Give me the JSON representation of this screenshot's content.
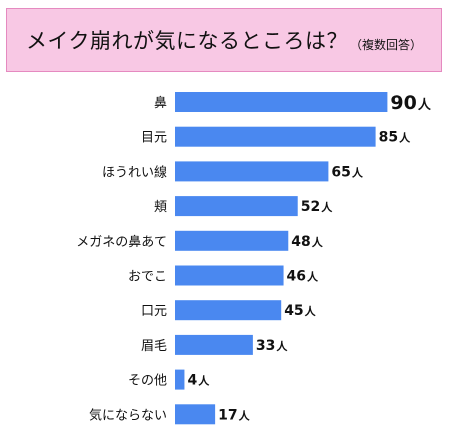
{
  "chart_data": {
    "type": "bar",
    "orientation": "horizontal",
    "title": "メイク崩れが気になるところは？",
    "subtitle": "（複数回答）",
    "unit": "人",
    "bar_color": "#4a88f0",
    "title_bg_color": "#f8c8e4",
    "title_border_color": "#e58ac0",
    "categories": [
      "鼻",
      "目元",
      "ほうれい線",
      "頬",
      "メガネの鼻あて",
      "おでこ",
      "口元",
      "眉毛",
      "その他",
      "気にならない"
    ],
    "values": [
      90,
      85,
      65,
      52,
      48,
      46,
      45,
      33,
      4,
      17
    ],
    "highlight_index": 0
  }
}
